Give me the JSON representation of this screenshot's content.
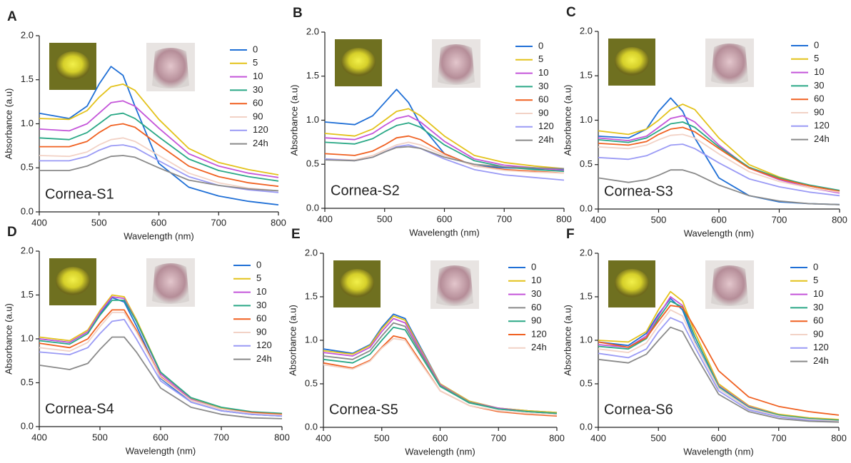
{
  "chart_data": [
    {
      "type": "line",
      "panel": "A",
      "annotation": "Cornea-S1",
      "xlabel": "Wavelength (nm)",
      "ylabel": "Absorbance (a.u)",
      "x": [
        400,
        450,
        480,
        500,
        520,
        540,
        560,
        600,
        650,
        700,
        750,
        800
      ],
      "xlim": [
        400,
        800
      ],
      "xticks": [
        400,
        500,
        600,
        700,
        800
      ],
      "ylim": [
        0,
        2
      ],
      "yticks": [
        {
          "value": 0,
          "label": "0.0"
        },
        0.5,
        {
          "value": 1,
          "label": "1.0"
        },
        1.5,
        {
          "value": 2,
          "label": "2.0"
        }
      ],
      "series": [
        {
          "name": "0",
          "color": "#1f6fd6",
          "values": [
            1.12,
            1.06,
            1.2,
            1.45,
            1.65,
            1.55,
            1.2,
            0.55,
            0.28,
            0.18,
            0.12,
            0.08
          ]
        },
        {
          "name": "5",
          "color": "#e3c21a",
          "values": [
            1.06,
            1.05,
            1.15,
            1.3,
            1.42,
            1.45,
            1.38,
            1.05,
            0.72,
            0.56,
            0.48,
            0.42
          ]
        },
        {
          "name": "10",
          "color": "#c455d9",
          "values": [
            0.94,
            0.92,
            1.0,
            1.12,
            1.24,
            1.26,
            1.2,
            0.95,
            0.66,
            0.52,
            0.44,
            0.39
          ]
        },
        {
          "name": "30",
          "color": "#2aa886",
          "values": [
            0.84,
            0.82,
            0.9,
            1.0,
            1.1,
            1.12,
            1.06,
            0.85,
            0.6,
            0.47,
            0.4,
            0.35
          ]
        },
        {
          "name": "60",
          "color": "#f06020",
          "values": [
            0.74,
            0.74,
            0.8,
            0.9,
            0.98,
            1.0,
            0.96,
            0.76,
            0.52,
            0.4,
            0.33,
            0.29
          ]
        },
        {
          "name": "90",
          "color": "#f2d2c6",
          "values": [
            0.64,
            0.63,
            0.68,
            0.76,
            0.82,
            0.84,
            0.8,
            0.64,
            0.44,
            0.33,
            0.27,
            0.24
          ]
        },
        {
          "name": "120",
          "color": "#9a9af5",
          "values": [
            0.58,
            0.58,
            0.63,
            0.7,
            0.75,
            0.76,
            0.73,
            0.58,
            0.4,
            0.3,
            0.25,
            0.22
          ]
        },
        {
          "name": "24h",
          "color": "#8a8a8a",
          "values": [
            0.47,
            0.47,
            0.52,
            0.58,
            0.63,
            0.64,
            0.62,
            0.5,
            0.36,
            0.3,
            0.26,
            0.24
          ]
        }
      ]
    },
    {
      "type": "line",
      "panel": "B",
      "annotation": "Cornea-S2",
      "xlabel": "Wavelength (nm)",
      "ylabel": "Absorbance (a.u)",
      "x": [
        400,
        450,
        480,
        500,
        520,
        540,
        560,
        600,
        650,
        700,
        750,
        800
      ],
      "xlim": [
        400,
        800
      ],
      "xticks": [
        400,
        500,
        600,
        700,
        800
      ],
      "ylim": [
        0,
        2
      ],
      "yticks": [
        {
          "value": 0,
          "label": "0.0"
        },
        0.5,
        {
          "value": 1,
          "label": "1.0"
        },
        1.5,
        {
          "value": 2,
          "label": "2.0"
        }
      ],
      "series": [
        {
          "name": "0",
          "color": "#1f6fd6",
          "values": [
            0.98,
            0.95,
            1.05,
            1.2,
            1.35,
            1.2,
            0.95,
            0.62,
            0.48,
            0.46,
            0.45,
            0.44
          ]
        },
        {
          "name": "5",
          "color": "#e3c21a",
          "values": [
            0.85,
            0.82,
            0.9,
            1.0,
            1.1,
            1.13,
            1.05,
            0.82,
            0.6,
            0.52,
            0.48,
            0.45
          ]
        },
        {
          "name": "10",
          "color": "#c455d9",
          "values": [
            0.8,
            0.78,
            0.85,
            0.94,
            1.02,
            1.05,
            0.98,
            0.76,
            0.56,
            0.49,
            0.46,
            0.43
          ]
        },
        {
          "name": "30",
          "color": "#2aa886",
          "values": [
            0.75,
            0.73,
            0.79,
            0.87,
            0.94,
            0.97,
            0.92,
            0.72,
            0.54,
            0.47,
            0.44,
            0.42
          ]
        },
        {
          "name": "60",
          "color": "#f06020",
          "values": [
            0.62,
            0.6,
            0.65,
            0.72,
            0.8,
            0.82,
            0.78,
            0.62,
            0.48,
            0.44,
            0.42,
            0.4
          ]
        },
        {
          "name": "90",
          "color": "#f2d2c6",
          "values": [
            0.56,
            0.55,
            0.6,
            0.66,
            0.72,
            0.75,
            0.72,
            0.6,
            0.48,
            0.43,
            0.41,
            0.4
          ]
        },
        {
          "name": "120",
          "color": "#9a9af5",
          "values": [
            0.56,
            0.54,
            0.58,
            0.64,
            0.7,
            0.72,
            0.68,
            0.56,
            0.44,
            0.38,
            0.35,
            0.32
          ]
        },
        {
          "name": "24h",
          "color": "#8a8a8a",
          "values": [
            0.55,
            0.54,
            0.58,
            0.64,
            0.69,
            0.7,
            0.68,
            0.58,
            0.5,
            0.47,
            0.46,
            0.45
          ]
        }
      ]
    },
    {
      "type": "line",
      "panel": "C",
      "annotation": "Cornea-S3",
      "xlabel": "Wavelength (nm)",
      "ylabel": "Absorbance (a.u)",
      "x": [
        400,
        450,
        480,
        500,
        520,
        540,
        560,
        600,
        650,
        700,
        750,
        800
      ],
      "xlim": [
        400,
        800
      ],
      "xticks": [
        400,
        500,
        600,
        700,
        800
      ],
      "ylim": [
        0,
        2
      ],
      "yticks": [
        {
          "value": 0,
          "label": "0.0"
        },
        0.5,
        {
          "value": 1,
          "label": "1.0"
        },
        1.5,
        {
          "value": 2,
          "label": "2.0"
        }
      ],
      "series": [
        {
          "name": "0",
          "color": "#1f6fd6",
          "values": [
            0.82,
            0.8,
            0.9,
            1.1,
            1.25,
            1.1,
            0.8,
            0.35,
            0.15,
            0.08,
            0.06,
            0.05
          ]
        },
        {
          "name": "5",
          "color": "#e3c21a",
          "values": [
            0.88,
            0.84,
            0.9,
            1.0,
            1.12,
            1.18,
            1.12,
            0.8,
            0.5,
            0.36,
            0.26,
            0.2
          ]
        },
        {
          "name": "10",
          "color": "#c455d9",
          "values": [
            0.8,
            0.77,
            0.82,
            0.92,
            1.02,
            1.05,
            0.98,
            0.72,
            0.46,
            0.33,
            0.24,
            0.18
          ]
        },
        {
          "name": "30",
          "color": "#2aa886",
          "values": [
            0.78,
            0.75,
            0.8,
            0.88,
            0.96,
            0.98,
            0.92,
            0.7,
            0.47,
            0.35,
            0.27,
            0.21
          ]
        },
        {
          "name": "60",
          "color": "#f06020",
          "values": [
            0.74,
            0.72,
            0.76,
            0.84,
            0.9,
            0.92,
            0.87,
            0.68,
            0.46,
            0.34,
            0.26,
            0.2
          ]
        },
        {
          "name": "90",
          "color": "#f2d2c6",
          "values": [
            0.7,
            0.68,
            0.72,
            0.78,
            0.83,
            0.84,
            0.8,
            0.62,
            0.42,
            0.31,
            0.24,
            0.19
          ]
        },
        {
          "name": "120",
          "color": "#9a9af5",
          "values": [
            0.58,
            0.56,
            0.6,
            0.66,
            0.72,
            0.73,
            0.68,
            0.52,
            0.34,
            0.25,
            0.19,
            0.15
          ]
        },
        {
          "name": "24h",
          "color": "#8a8a8a",
          "values": [
            0.35,
            0.3,
            0.33,
            0.38,
            0.44,
            0.44,
            0.4,
            0.27,
            0.15,
            0.09,
            0.06,
            0.05
          ]
        }
      ]
    },
    {
      "type": "line",
      "panel": "D",
      "annotation": "Cornea-S4",
      "xlabel": "Wavelength (nm)",
      "ylabel": "Absorbance (a.u)",
      "x": [
        400,
        450,
        480,
        500,
        520,
        540,
        560,
        600,
        650,
        700,
        750,
        800
      ],
      "xlim": [
        400,
        800
      ],
      "xticks": [
        400,
        500,
        600,
        700,
        800
      ],
      "ylim": [
        0,
        2
      ],
      "yticks": [
        {
          "value": 0,
          "label": "0.0"
        },
        0.5,
        {
          "value": 1,
          "label": "1.0"
        },
        1.5,
        {
          "value": 2,
          "label": "2.0"
        }
      ],
      "series": [
        {
          "name": "0",
          "color": "#1f6fd6",
          "values": [
            1.0,
            0.96,
            1.08,
            1.28,
            1.47,
            1.42,
            1.15,
            0.55,
            0.28,
            0.18,
            0.14,
            0.12
          ]
        },
        {
          "name": "5",
          "color": "#e3c21a",
          "values": [
            1.02,
            0.98,
            1.1,
            1.32,
            1.5,
            1.48,
            1.22,
            0.62,
            0.32,
            0.21,
            0.16,
            0.14
          ]
        },
        {
          "name": "10",
          "color": "#c455d9",
          "values": [
            1.0,
            0.96,
            1.08,
            1.3,
            1.48,
            1.46,
            1.2,
            0.6,
            0.31,
            0.2,
            0.16,
            0.14
          ]
        },
        {
          "name": "30",
          "color": "#2aa886",
          "values": [
            0.98,
            0.94,
            1.06,
            1.27,
            1.44,
            1.44,
            1.2,
            0.62,
            0.33,
            0.22,
            0.17,
            0.15
          ]
        },
        {
          "name": "60",
          "color": "#f06020",
          "values": [
            0.95,
            0.9,
            1.0,
            1.18,
            1.33,
            1.33,
            1.1,
            0.57,
            0.3,
            0.2,
            0.16,
            0.14
          ]
        },
        {
          "name": "90",
          "color": "#f2d2c6",
          "values": [
            0.9,
            0.86,
            0.96,
            1.14,
            1.3,
            1.3,
            1.08,
            0.56,
            0.3,
            0.2,
            0.15,
            0.13
          ]
        },
        {
          "name": "120",
          "color": "#9a9af5",
          "values": [
            0.85,
            0.82,
            0.9,
            1.06,
            1.2,
            1.22,
            1.0,
            0.52,
            0.28,
            0.18,
            0.14,
            0.12
          ]
        },
        {
          "name": "24h",
          "color": "#8a8a8a",
          "values": [
            0.7,
            0.65,
            0.72,
            0.88,
            1.02,
            1.02,
            0.85,
            0.44,
            0.22,
            0.14,
            0.1,
            0.09
          ]
        }
      ]
    },
    {
      "type": "line",
      "panel": "E",
      "annotation": "Cornea-S5",
      "xlabel": "Wavelength (nm)",
      "ylabel": "Absorbance (a.u)",
      "x": [
        400,
        450,
        480,
        500,
        520,
        540,
        560,
        600,
        650,
        700,
        750,
        800
      ],
      "xlim": [
        400,
        800
      ],
      "xticks": [
        400,
        500,
        600,
        700,
        800
      ],
      "ylim": [
        0,
        2
      ],
      "yticks": [
        {
          "value": 0,
          "label": "0.0"
        },
        0.5,
        {
          "value": 1,
          "label": "1.0"
        },
        1.5,
        {
          "value": 2,
          "label": "2.0"
        }
      ],
      "series": [
        {
          "name": "0",
          "color": "#1f6fd6",
          "values": [
            0.9,
            0.85,
            0.95,
            1.15,
            1.3,
            1.25,
            1.0,
            0.5,
            0.3,
            0.22,
            0.19,
            0.17
          ]
        },
        {
          "name": "10",
          "color": "#e3c21a",
          "values": [
            0.88,
            0.84,
            0.94,
            1.13,
            1.28,
            1.23,
            0.98,
            0.5,
            0.3,
            0.22,
            0.19,
            0.17
          ]
        },
        {
          "name": "30",
          "color": "#c455d9",
          "values": [
            0.86,
            0.82,
            0.92,
            1.1,
            1.25,
            1.2,
            0.96,
            0.49,
            0.29,
            0.22,
            0.18,
            0.16
          ]
        },
        {
          "name": "60",
          "color": "#8a8a8a",
          "values": [
            0.82,
            0.78,
            0.88,
            1.05,
            1.2,
            1.16,
            0.93,
            0.48,
            0.29,
            0.21,
            0.18,
            0.16
          ]
        },
        {
          "name": "90",
          "color": "#2aa886",
          "values": [
            0.78,
            0.74,
            0.84,
            1.0,
            1.15,
            1.12,
            0.9,
            0.47,
            0.28,
            0.21,
            0.18,
            0.16
          ]
        },
        {
          "name": "120",
          "color": "#f06020",
          "values": [
            0.74,
            0.68,
            0.77,
            0.92,
            1.05,
            1.02,
            0.82,
            0.42,
            0.25,
            0.18,
            0.15,
            0.13
          ]
        },
        {
          "name": "24h",
          "color": "#f2d2c6",
          "values": [
            0.72,
            0.67,
            0.76,
            0.91,
            1.02,
            1.0,
            0.8,
            0.42,
            0.25,
            0.19,
            0.16,
            0.14
          ]
        }
      ]
    },
    {
      "type": "line",
      "panel": "F",
      "annotation": "Cornea-S6",
      "xlabel": "Wavelength (nm)",
      "ylabel": "Absorbance (a.u)",
      "x": [
        400,
        450,
        480,
        500,
        520,
        540,
        560,
        600,
        650,
        700,
        750,
        800
      ],
      "xlim": [
        400,
        800
      ],
      "xticks": [
        400,
        500,
        600,
        700,
        800
      ],
      "ylim": [
        0,
        2
      ],
      "yticks": [
        {
          "value": 0,
          "label": "0.0"
        },
        0.5,
        {
          "value": 1,
          "label": "1.0"
        },
        1.5,
        {
          "value": 2,
          "label": "2.0"
        }
      ],
      "series": [
        {
          "name": "0",
          "color": "#1f6fd6",
          "values": [
            0.98,
            0.94,
            1.08,
            1.3,
            1.48,
            1.35,
            1.0,
            0.45,
            0.22,
            0.13,
            0.09,
            0.07
          ]
        },
        {
          "name": "5",
          "color": "#e3c21a",
          "values": [
            1.0,
            0.98,
            1.1,
            1.35,
            1.56,
            1.45,
            1.1,
            0.5,
            0.25,
            0.15,
            0.11,
            0.09
          ]
        },
        {
          "name": "10",
          "color": "#c455d9",
          "values": [
            0.95,
            0.92,
            1.05,
            1.28,
            1.5,
            1.4,
            1.05,
            0.48,
            0.24,
            0.14,
            0.1,
            0.08
          ]
        },
        {
          "name": "30",
          "color": "#2aa886",
          "values": [
            0.93,
            0.9,
            1.02,
            1.25,
            1.45,
            1.38,
            1.05,
            0.47,
            0.23,
            0.14,
            0.1,
            0.08
          ]
        },
        {
          "name": "60",
          "color": "#f06020",
          "values": [
            0.98,
            0.92,
            1.03,
            1.22,
            1.4,
            1.38,
            1.15,
            0.65,
            0.35,
            0.24,
            0.18,
            0.14
          ]
        },
        {
          "name": "90",
          "color": "#f2d2c6",
          "values": [
            0.9,
            0.86,
            0.97,
            1.17,
            1.35,
            1.28,
            0.98,
            0.45,
            0.22,
            0.13,
            0.09,
            0.07
          ]
        },
        {
          "name": "120",
          "color": "#9a9af5",
          "values": [
            0.85,
            0.8,
            0.9,
            1.1,
            1.26,
            1.2,
            0.93,
            0.42,
            0.2,
            0.12,
            0.08,
            0.06
          ]
        },
        {
          "name": "24h",
          "color": "#8a8a8a",
          "values": [
            0.78,
            0.74,
            0.84,
            1.0,
            1.15,
            1.1,
            0.85,
            0.38,
            0.18,
            0.1,
            0.07,
            0.06
          ]
        }
      ]
    }
  ]
}
